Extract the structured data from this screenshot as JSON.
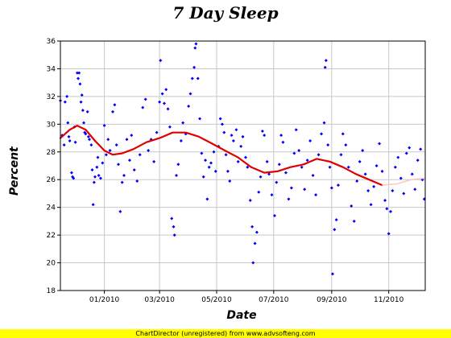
{
  "chart_data": {
    "type": "scatter",
    "title": "7 Day Sleep",
    "xlabel": "Date",
    "ylabel": "Percent",
    "ylim": [
      18,
      36
    ],
    "yticks": [
      18,
      20,
      22,
      24,
      26,
      28,
      30,
      32,
      34,
      36
    ],
    "xlim": [
      "2009-11-15",
      "2010-12-10"
    ],
    "xticks": [
      {
        "date": "2010-01-01",
        "label": "01/2010"
      },
      {
        "date": "2010-03-01",
        "label": "03/2010"
      },
      {
        "date": "2010-05-01",
        "label": "05/2010"
      },
      {
        "date": "2010-07-01",
        "label": "07/2010"
      },
      {
        "date": "2010-09-01",
        "label": "09/2010"
      },
      {
        "date": "2010-11-01",
        "label": "11/2010"
      }
    ],
    "grid": true,
    "series": [
      {
        "type": "scatter",
        "color": "#0000ff",
        "points": [
          [
            "2009-11-15",
            31.7
          ],
          [
            "2009-11-17",
            29.2
          ],
          [
            "2009-11-19",
            28.5
          ],
          [
            "2009-11-20",
            31.6
          ],
          [
            "2009-11-22",
            32.0
          ],
          [
            "2009-11-23",
            30.1
          ],
          [
            "2009-11-24",
            29.1
          ],
          [
            "2009-11-25",
            28.8
          ],
          [
            "2009-11-27",
            26.5
          ],
          [
            "2009-11-28",
            26.2
          ],
          [
            "2009-11-29",
            26.1
          ],
          [
            "2009-11-30",
            29.8
          ],
          [
            "2009-12-01",
            28.7
          ],
          [
            "2009-12-03",
            33.7
          ],
          [
            "2009-12-04",
            33.3
          ],
          [
            "2009-12-05",
            33.7
          ],
          [
            "2009-12-06",
            32.9
          ],
          [
            "2009-12-07",
            31.6
          ],
          [
            "2009-12-08",
            32.1
          ],
          [
            "2009-12-09",
            31.0
          ],
          [
            "2009-12-10",
            30.1
          ],
          [
            "2009-12-11",
            29.4
          ],
          [
            "2009-12-12",
            29.3
          ],
          [
            "2009-12-14",
            30.9
          ],
          [
            "2009-12-15",
            29.1
          ],
          [
            "2009-12-16",
            28.9
          ],
          [
            "2009-12-18",
            28.5
          ],
          [
            "2009-12-19",
            26.7
          ],
          [
            "2009-12-20",
            24.2
          ],
          [
            "2009-12-21",
            25.8
          ],
          [
            "2009-12-22",
            26.2
          ],
          [
            "2009-12-24",
            26.9
          ],
          [
            "2009-12-25",
            27.6
          ],
          [
            "2009-12-26",
            26.3
          ],
          [
            "2009-12-28",
            26.1
          ],
          [
            "2009-12-30",
            27.2
          ],
          [
            "2010-01-01",
            29.9
          ],
          [
            "2010-01-03",
            27.8
          ],
          [
            "2010-01-05",
            28.9
          ],
          [
            "2010-01-07",
            28.1
          ],
          [
            "2010-01-10",
            30.9
          ],
          [
            "2010-01-12",
            31.4
          ],
          [
            "2010-01-14",
            28.5
          ],
          [
            "2010-01-16",
            27.1
          ],
          [
            "2010-01-18",
            23.7
          ],
          [
            "2010-01-20",
            25.8
          ],
          [
            "2010-01-22",
            26.3
          ],
          [
            "2010-01-25",
            28.9
          ],
          [
            "2010-01-28",
            27.4
          ],
          [
            "2010-01-30",
            29.2
          ],
          [
            "2010-02-02",
            26.7
          ],
          [
            "2010-02-05",
            25.9
          ],
          [
            "2010-02-08",
            27.8
          ],
          [
            "2010-02-11",
            31.2
          ],
          [
            "2010-02-14",
            31.8
          ],
          [
            "2010-02-17",
            28.1
          ],
          [
            "2010-02-20",
            28.9
          ],
          [
            "2010-02-23",
            27.3
          ],
          [
            "2010-02-26",
            29.4
          ],
          [
            "2010-03-01",
            31.6
          ],
          [
            "2010-03-02",
            34.6
          ],
          [
            "2010-03-04",
            32.2
          ],
          [
            "2010-03-06",
            31.5
          ],
          [
            "2010-03-08",
            32.5
          ],
          [
            "2010-03-10",
            31.1
          ],
          [
            "2010-03-12",
            29.8
          ],
          [
            "2010-03-14",
            23.2
          ],
          [
            "2010-03-16",
            22.6
          ],
          [
            "2010-03-17",
            22.0
          ],
          [
            "2010-03-19",
            26.3
          ],
          [
            "2010-03-21",
            27.1
          ],
          [
            "2010-03-24",
            28.8
          ],
          [
            "2010-03-26",
            30.1
          ],
          [
            "2010-03-29",
            29.3
          ],
          [
            "2010-04-01",
            31.3
          ],
          [
            "2010-04-03",
            32.2
          ],
          [
            "2010-04-05",
            33.3
          ],
          [
            "2010-04-07",
            34.1
          ],
          [
            "2010-04-08",
            35.5
          ],
          [
            "2010-04-09",
            35.8
          ],
          [
            "2010-04-11",
            33.3
          ],
          [
            "2010-04-13",
            30.4
          ],
          [
            "2010-04-15",
            27.9
          ],
          [
            "2010-04-17",
            26.2
          ],
          [
            "2010-04-19",
            27.4
          ],
          [
            "2010-04-21",
            24.6
          ],
          [
            "2010-04-23",
            26.9
          ],
          [
            "2010-04-25",
            27.2
          ],
          [
            "2010-04-28",
            28.0
          ],
          [
            "2010-04-30",
            26.6
          ],
          [
            "2010-05-03",
            28.4
          ],
          [
            "2010-05-05",
            30.4
          ],
          [
            "2010-05-07",
            30.0
          ],
          [
            "2010-05-09",
            29.4
          ],
          [
            "2010-05-11",
            27.8
          ],
          [
            "2010-05-13",
            26.6
          ],
          [
            "2010-05-15",
            25.9
          ],
          [
            "2010-05-17",
            29.2
          ],
          [
            "2010-05-19",
            28.8
          ],
          [
            "2010-05-22",
            29.6
          ],
          [
            "2010-05-24",
            27.3
          ],
          [
            "2010-05-27",
            28.4
          ],
          [
            "2010-05-29",
            29.1
          ],
          [
            "2010-06-01",
            27.6
          ],
          [
            "2010-06-03",
            26.9
          ],
          [
            "2010-06-06",
            24.5
          ],
          [
            "2010-06-08",
            22.6
          ],
          [
            "2010-06-09",
            20.0
          ],
          [
            "2010-06-11",
            21.4
          ],
          [
            "2010-06-13",
            22.2
          ],
          [
            "2010-06-15",
            25.1
          ],
          [
            "2010-06-17",
            26.2
          ],
          [
            "2010-06-19",
            29.5
          ],
          [
            "2010-06-21",
            29.2
          ],
          [
            "2010-06-24",
            27.3
          ],
          [
            "2010-06-26",
            26.4
          ],
          [
            "2010-06-29",
            24.9
          ],
          [
            "2010-07-02",
            23.4
          ],
          [
            "2010-07-04",
            25.8
          ],
          [
            "2010-07-07",
            27.1
          ],
          [
            "2010-07-09",
            29.2
          ],
          [
            "2010-07-11",
            28.7
          ],
          [
            "2010-07-14",
            26.5
          ],
          [
            "2010-07-17",
            24.6
          ],
          [
            "2010-07-20",
            25.4
          ],
          [
            "2010-07-23",
            27.9
          ],
          [
            "2010-07-25",
            29.6
          ],
          [
            "2010-07-28",
            28.1
          ],
          [
            "2010-07-31",
            26.9
          ],
          [
            "2010-08-03",
            25.3
          ],
          [
            "2010-08-06",
            27.4
          ],
          [
            "2010-08-09",
            28.8
          ],
          [
            "2010-08-12",
            26.3
          ],
          [
            "2010-08-15",
            24.9
          ],
          [
            "2010-08-18",
            27.8
          ],
          [
            "2010-08-21",
            29.3
          ],
          [
            "2010-08-24",
            30.1
          ],
          [
            "2010-08-25",
            34.1
          ],
          [
            "2010-08-26",
            34.6
          ],
          [
            "2010-08-28",
            28.5
          ],
          [
            "2010-08-30",
            26.9
          ],
          [
            "2010-09-01",
            25.4
          ],
          [
            "2010-09-02",
            19.2
          ],
          [
            "2010-09-04",
            22.4
          ],
          [
            "2010-09-06",
            23.1
          ],
          [
            "2010-09-08",
            25.6
          ],
          [
            "2010-09-11",
            27.8
          ],
          [
            "2010-09-13",
            29.3
          ],
          [
            "2010-09-16",
            28.5
          ],
          [
            "2010-09-19",
            26.9
          ],
          [
            "2010-09-22",
            24.1
          ],
          [
            "2010-09-25",
            23.0
          ],
          [
            "2010-09-28",
            25.9
          ],
          [
            "2010-10-01",
            27.3
          ],
          [
            "2010-10-04",
            28.1
          ],
          [
            "2010-10-07",
            26.4
          ],
          [
            "2010-10-10",
            25.2
          ],
          [
            "2010-10-13",
            24.2
          ],
          [
            "2010-10-16",
            25.5
          ],
          [
            "2010-10-19",
            27.0
          ],
          [
            "2010-10-22",
            28.6
          ],
          [
            "2010-10-25",
            26.6
          ],
          [
            "2010-10-28",
            24.5
          ],
          [
            "2010-10-30",
            23.9
          ],
          [
            "2010-11-01",
            22.1
          ],
          [
            "2010-11-03",
            23.7
          ],
          [
            "2010-11-05",
            25.2
          ],
          [
            "2010-11-08",
            26.9
          ],
          [
            "2010-11-11",
            27.6
          ],
          [
            "2010-11-14",
            26.1
          ],
          [
            "2010-11-17",
            25.0
          ],
          [
            "2010-11-20",
            27.9
          ],
          [
            "2010-11-23",
            28.3
          ],
          [
            "2010-11-26",
            26.4
          ],
          [
            "2010-11-29",
            25.3
          ],
          [
            "2010-12-02",
            27.4
          ],
          [
            "2010-12-05",
            28.2
          ],
          [
            "2010-12-07",
            26.0
          ],
          [
            "2010-12-09",
            24.6
          ]
        ]
      },
      {
        "type": "line",
        "color": "#e00000",
        "points": [
          [
            "2009-11-15",
            29.0
          ],
          [
            "2009-11-25",
            29.6
          ],
          [
            "2009-12-03",
            29.9
          ],
          [
            "2009-12-12",
            29.6
          ],
          [
            "2009-12-22",
            28.8
          ],
          [
            "2010-01-01",
            28.1
          ],
          [
            "2010-01-10",
            27.8
          ],
          [
            "2010-01-20",
            27.9
          ],
          [
            "2010-02-01",
            28.2
          ],
          [
            "2010-02-15",
            28.7
          ],
          [
            "2010-03-01",
            29.0
          ],
          [
            "2010-03-15",
            29.4
          ],
          [
            "2010-03-29",
            29.4
          ],
          [
            "2010-04-12",
            29.1
          ],
          [
            "2010-04-26",
            28.6
          ],
          [
            "2010-05-10",
            28.1
          ],
          [
            "2010-05-24",
            27.6
          ],
          [
            "2010-06-07",
            26.9
          ],
          [
            "2010-06-21",
            26.5
          ],
          [
            "2010-07-05",
            26.6
          ],
          [
            "2010-07-19",
            26.9
          ],
          [
            "2010-08-02",
            27.1
          ],
          [
            "2010-08-16",
            27.5
          ],
          [
            "2010-08-30",
            27.3
          ],
          [
            "2010-09-13",
            26.9
          ],
          [
            "2010-09-27",
            26.4
          ],
          [
            "2010-10-11",
            26.0
          ],
          [
            "2010-10-25",
            25.6
          ]
        ]
      },
      {
        "type": "line",
        "color": "#ffc0c0",
        "points": [
          [
            "2010-10-25",
            25.6
          ],
          [
            "2010-11-10",
            25.7
          ],
          [
            "2010-11-25",
            26.0
          ],
          [
            "2010-12-10",
            26.1
          ]
        ]
      }
    ]
  },
  "footer": "ChartDirector (unregistered) from www.advsofteng.com"
}
